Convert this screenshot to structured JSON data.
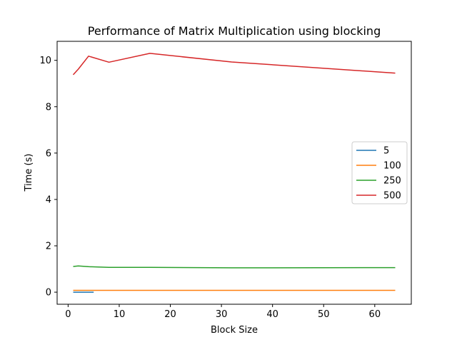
{
  "chart_data": {
    "type": "line",
    "title": "Performance of Matrix Multiplication using blocking",
    "xlabel": "Block Size",
    "ylabel": "Time (s)",
    "xlim": [
      -2.15,
      67.15
    ],
    "ylim": [
      -0.52,
      10.82
    ],
    "xticks": [
      0,
      10,
      20,
      30,
      40,
      50,
      60
    ],
    "yticks": [
      0,
      2,
      4,
      6,
      8,
      10
    ],
    "grid": false,
    "legend_position": "center-right",
    "series": [
      {
        "name": "5",
        "color": "#1f77b4",
        "x": [
          1,
          5
        ],
        "y": [
          0.0,
          0.0
        ]
      },
      {
        "name": "100",
        "color": "#ff7f0e",
        "x": [
          1,
          2,
          4,
          8,
          16,
          32,
          64
        ],
        "y": [
          0.08,
          0.08,
          0.08,
          0.08,
          0.08,
          0.08,
          0.08
        ]
      },
      {
        "name": "250",
        "color": "#2ca02c",
        "x": [
          1,
          2,
          4,
          8,
          16,
          32,
          64
        ],
        "y": [
          1.11,
          1.13,
          1.1,
          1.07,
          1.07,
          1.05,
          1.06
        ]
      },
      {
        "name": "500",
        "color": "#d62728",
        "x": [
          1,
          2,
          4,
          8,
          16,
          32,
          64
        ],
        "y": [
          9.38,
          9.62,
          10.18,
          9.92,
          10.3,
          9.93,
          9.45
        ]
      }
    ]
  }
}
